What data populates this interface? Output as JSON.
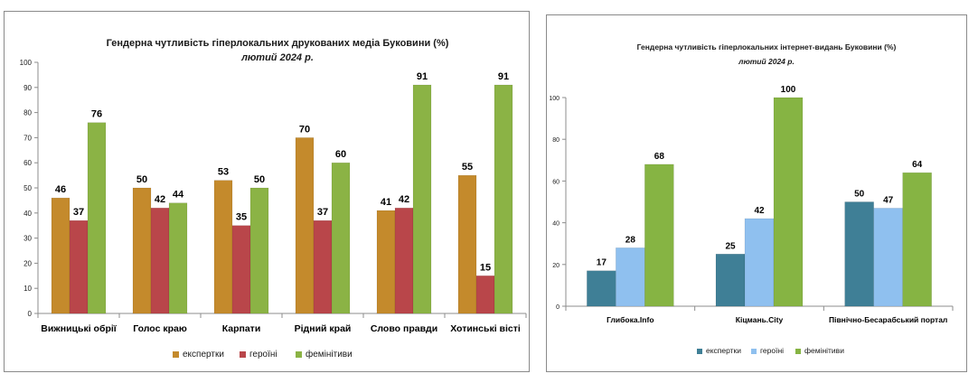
{
  "chart_data": [
    {
      "type": "bar",
      "title": "Гендерна чутливість гіперлокальних друкованих медіа Буковини (%)",
      "subtitle": "лютий 2024 р.",
      "categories": [
        "Вижницькі обрії",
        "Голос краю",
        "Карпати",
        "Рідний край",
        "Слово правди",
        "Хотинські вісті"
      ],
      "series": [
        {
          "name": "експертки",
          "color": "#c48a2c",
          "values": [
            46,
            50,
            53,
            70,
            41,
            55
          ]
        },
        {
          "name": "героїні",
          "color": "#b9464a",
          "values": [
            37,
            42,
            35,
            37,
            42,
            15
          ]
        },
        {
          "name": "фемінітиви",
          "color": "#8bb345",
          "values": [
            76,
            44,
            50,
            60,
            91,
            91
          ]
        }
      ],
      "ylim": [
        0,
        100
      ],
      "yticks": [
        0,
        10,
        20,
        30,
        40,
        50,
        60,
        70,
        80,
        90,
        100
      ],
      "grid": false,
      "legend": "bottom",
      "xlabel": "",
      "ylabel": ""
    },
    {
      "type": "bar",
      "title": "Гендерна чутливість гіперлокальних інтернет-видань Буковини (%)",
      "subtitle": "лютий 2024 р.",
      "categories": [
        "Глибока.Info",
        "Кіцмань.City",
        "Північно-Бесарабський портал"
      ],
      "series": [
        {
          "name": "експертки",
          "color": "#3f7f96",
          "values": [
            17,
            25,
            50
          ]
        },
        {
          "name": "героїні",
          "color": "#8fc0ef",
          "values": [
            28,
            42,
            47
          ]
        },
        {
          "name": "фемінітиви",
          "color": "#86b443",
          "values": [
            68,
            100,
            64
          ]
        }
      ],
      "ylim": [
        0,
        100
      ],
      "yticks": [
        0,
        20,
        40,
        60,
        80,
        100
      ],
      "grid": false,
      "legend": "bottom",
      "xlabel": "",
      "ylabel": ""
    }
  ]
}
